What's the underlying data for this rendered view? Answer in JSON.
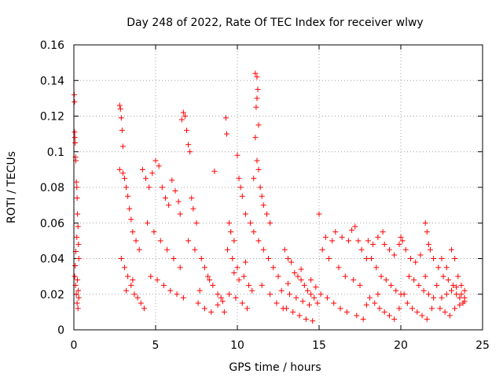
{
  "chart_data": {
    "type": "scatter",
    "title": "Day 248 of 2022, Rate Of TEC Index for receiver wlwy",
    "xlabel": "GPS time / hours",
    "ylabel": "ROTI / TECUs",
    "xlim": [
      0,
      25
    ],
    "ylim": [
      0,
      0.16
    ],
    "x_ticks": [
      0,
      5,
      10,
      15,
      20,
      25
    ],
    "x_tick_labels": [
      "0",
      "5",
      "10",
      "15",
      "20",
      "25"
    ],
    "y_ticks": [
      0,
      0.02,
      0.04,
      0.06,
      0.08,
      0.1,
      0.12,
      0.14,
      0.16
    ],
    "y_tick_labels": [
      "0",
      "0.02",
      "0.04",
      "0.06",
      "0.08",
      "0.1",
      "0.12",
      "0.14",
      "0.16"
    ],
    "grid": true,
    "marker": "+",
    "color": "#ff0000",
    "series": [
      {
        "points": [
          [
            0.02,
            0.132
          ],
          [
            0.04,
            0.128
          ],
          [
            0.05,
            0.111
          ],
          [
            0.06,
            0.108
          ],
          [
            0.08,
            0.105
          ],
          [
            0.1,
            0.097
          ],
          [
            0.12,
            0.095
          ],
          [
            0.15,
            0.083
          ],
          [
            0.18,
            0.08
          ],
          [
            0.2,
            0.074
          ],
          [
            0.22,
            0.065
          ],
          [
            0.25,
            0.058
          ],
          [
            0.28,
            0.048
          ],
          [
            0.3,
            0.04
          ],
          [
            0.05,
            0.03
          ],
          [
            0.1,
            0.025
          ],
          [
            0.15,
            0.02
          ],
          [
            0.2,
            0.015
          ],
          [
            0.25,
            0.012
          ],
          [
            0.3,
            0.018
          ],
          [
            0.08,
            0.036
          ],
          [
            0.12,
            0.044
          ],
          [
            0.18,
            0.052
          ],
          [
            0.22,
            0.028
          ],
          [
            0.27,
            0.022
          ],
          [
            2.8,
            0.126
          ],
          [
            2.85,
            0.124
          ],
          [
            2.9,
            0.119
          ],
          [
            2.95,
            0.112
          ],
          [
            3.0,
            0.103
          ],
          [
            2.8,
            0.09
          ],
          [
            3.0,
            0.088
          ],
          [
            3.1,
            0.085
          ],
          [
            3.2,
            0.08
          ],
          [
            3.3,
            0.075
          ],
          [
            3.4,
            0.068
          ],
          [
            3.5,
            0.062
          ],
          [
            3.6,
            0.055
          ],
          [
            3.8,
            0.05
          ],
          [
            4.0,
            0.045
          ],
          [
            2.9,
            0.04
          ],
          [
            3.1,
            0.035
          ],
          [
            3.3,
            0.03
          ],
          [
            3.5,
            0.025
          ],
          [
            3.7,
            0.02
          ],
          [
            3.9,
            0.018
          ],
          [
            4.1,
            0.015
          ],
          [
            4.3,
            0.012
          ],
          [
            3.2,
            0.022
          ],
          [
            3.6,
            0.028
          ],
          [
            4.2,
            0.09
          ],
          [
            4.4,
            0.085
          ],
          [
            4.6,
            0.08
          ],
          [
            4.8,
            0.088
          ],
          [
            5.0,
            0.095
          ],
          [
            5.2,
            0.092
          ],
          [
            5.4,
            0.08
          ],
          [
            5.6,
            0.074
          ],
          [
            5.8,
            0.07
          ],
          [
            6.0,
            0.084
          ],
          [
            6.2,
            0.078
          ],
          [
            6.4,
            0.072
          ],
          [
            6.5,
            0.065
          ],
          [
            4.5,
            0.06
          ],
          [
            4.9,
            0.055
          ],
          [
            5.3,
            0.05
          ],
          [
            5.7,
            0.045
          ],
          [
            6.1,
            0.04
          ],
          [
            6.5,
            0.035
          ],
          [
            4.7,
            0.03
          ],
          [
            5.1,
            0.028
          ],
          [
            5.5,
            0.025
          ],
          [
            5.9,
            0.022
          ],
          [
            6.3,
            0.02
          ],
          [
            6.7,
            0.018
          ],
          [
            6.6,
            0.118
          ],
          [
            6.7,
            0.122
          ],
          [
            6.8,
            0.12
          ],
          [
            6.9,
            0.112
          ],
          [
            7.0,
            0.104
          ],
          [
            7.1,
            0.1
          ],
          [
            7.2,
            0.074
          ],
          [
            7.3,
            0.068
          ],
          [
            7.5,
            0.06
          ],
          [
            7.0,
            0.05
          ],
          [
            7.4,
            0.045
          ],
          [
            7.8,
            0.04
          ],
          [
            8.0,
            0.035
          ],
          [
            8.2,
            0.03
          ],
          [
            8.5,
            0.025
          ],
          [
            8.6,
            0.089
          ],
          [
            8.8,
            0.02
          ],
          [
            9.0,
            0.018
          ],
          [
            7.6,
            0.015
          ],
          [
            8.0,
            0.012
          ],
          [
            8.4,
            0.01
          ],
          [
            8.8,
            0.014
          ],
          [
            9.1,
            0.016
          ],
          [
            7.7,
            0.022
          ],
          [
            8.3,
            0.028
          ],
          [
            9.3,
            0.119
          ],
          [
            9.35,
            0.11
          ],
          [
            9.5,
            0.06
          ],
          [
            9.6,
            0.055
          ],
          [
            9.8,
            0.05
          ],
          [
            10.0,
            0.098
          ],
          [
            10.1,
            0.085
          ],
          [
            10.2,
            0.08
          ],
          [
            10.3,
            0.075
          ],
          [
            10.5,
            0.065
          ],
          [
            10.8,
            0.06
          ],
          [
            9.4,
            0.045
          ],
          [
            9.7,
            0.04
          ],
          [
            10.0,
            0.035
          ],
          [
            10.4,
            0.03
          ],
          [
            10.7,
            0.025
          ],
          [
            9.5,
            0.02
          ],
          [
            9.9,
            0.018
          ],
          [
            10.3,
            0.015
          ],
          [
            10.6,
            0.012
          ],
          [
            9.2,
            0.01
          ],
          [
            10.9,
            0.022
          ],
          [
            10.1,
            0.028
          ],
          [
            9.8,
            0.032
          ],
          [
            10.5,
            0.038
          ],
          [
            11.1,
            0.144
          ],
          [
            11.2,
            0.142
          ],
          [
            11.25,
            0.135
          ],
          [
            11.2,
            0.13
          ],
          [
            11.15,
            0.125
          ],
          [
            11.3,
            0.115
          ],
          [
            11.1,
            0.108
          ],
          [
            11.2,
            0.095
          ],
          [
            11.3,
            0.09
          ],
          [
            11.0,
            0.085
          ],
          [
            11.4,
            0.08
          ],
          [
            11.5,
            0.075
          ],
          [
            11.6,
            0.07
          ],
          [
            11.8,
            0.065
          ],
          [
            12.0,
            0.06
          ],
          [
            11.0,
            0.055
          ],
          [
            11.3,
            0.05
          ],
          [
            11.6,
            0.045
          ],
          [
            11.9,
            0.04
          ],
          [
            12.2,
            0.035
          ],
          [
            12.5,
            0.03
          ],
          [
            11.5,
            0.025
          ],
          [
            12.0,
            0.02
          ],
          [
            12.4,
            0.015
          ],
          [
            12.8,
            0.012
          ],
          [
            12.9,
            0.045
          ],
          [
            13.1,
            0.04
          ],
          [
            13.3,
            0.038
          ],
          [
            13.5,
            0.032
          ],
          [
            13.7,
            0.03
          ],
          [
            13.9,
            0.028
          ],
          [
            14.1,
            0.025
          ],
          [
            14.3,
            0.022
          ],
          [
            14.5,
            0.02
          ],
          [
            14.7,
            0.018
          ],
          [
            14.9,
            0.015
          ],
          [
            13.0,
            0.012
          ],
          [
            13.4,
            0.01
          ],
          [
            13.8,
            0.008
          ],
          [
            14.2,
            0.006
          ],
          [
            14.6,
            0.005
          ],
          [
            13.2,
            0.02
          ],
          [
            13.6,
            0.018
          ],
          [
            14.0,
            0.016
          ],
          [
            14.4,
            0.014
          ],
          [
            14.8,
            0.024
          ],
          [
            13.1,
            0.026
          ],
          [
            13.9,
            0.034
          ],
          [
            14.5,
            0.028
          ],
          [
            12.7,
            0.022
          ],
          [
            15.0,
            0.065
          ],
          [
            15.4,
            0.052
          ],
          [
            15.8,
            0.05
          ],
          [
            16.0,
            0.055
          ],
          [
            16.4,
            0.052
          ],
          [
            16.8,
            0.05
          ],
          [
            17.0,
            0.056
          ],
          [
            17.2,
            0.058
          ],
          [
            17.4,
            0.05
          ],
          [
            17.6,
            0.045
          ],
          [
            17.9,
            0.04
          ],
          [
            15.2,
            0.045
          ],
          [
            15.6,
            0.04
          ],
          [
            16.2,
            0.035
          ],
          [
            16.6,
            0.03
          ],
          [
            17.1,
            0.028
          ],
          [
            17.5,
            0.025
          ],
          [
            15.1,
            0.02
          ],
          [
            15.5,
            0.018
          ],
          [
            15.9,
            0.015
          ],
          [
            16.3,
            0.012
          ],
          [
            16.7,
            0.01
          ],
          [
            17.3,
            0.008
          ],
          [
            17.7,
            0.006
          ],
          [
            17.9,
            0.014
          ],
          [
            18.0,
            0.05
          ],
          [
            18.3,
            0.048
          ],
          [
            18.6,
            0.052
          ],
          [
            18.9,
            0.055
          ],
          [
            19.0,
            0.048
          ],
          [
            19.3,
            0.045
          ],
          [
            19.6,
            0.042
          ],
          [
            19.9,
            0.048
          ],
          [
            20.0,
            0.052
          ],
          [
            20.1,
            0.05
          ],
          [
            18.2,
            0.04
          ],
          [
            18.5,
            0.035
          ],
          [
            18.8,
            0.03
          ],
          [
            19.1,
            0.028
          ],
          [
            19.4,
            0.025
          ],
          [
            19.7,
            0.022
          ],
          [
            20.0,
            0.02
          ],
          [
            18.1,
            0.018
          ],
          [
            18.4,
            0.015
          ],
          [
            18.7,
            0.012
          ],
          [
            19.0,
            0.01
          ],
          [
            19.3,
            0.008
          ],
          [
            19.6,
            0.006
          ],
          [
            19.9,
            0.012
          ],
          [
            18.6,
            0.02
          ],
          [
            20.3,
            0.045
          ],
          [
            20.6,
            0.04
          ],
          [
            20.9,
            0.038
          ],
          [
            21.2,
            0.042
          ],
          [
            21.5,
            0.06
          ],
          [
            21.6,
            0.055
          ],
          [
            21.7,
            0.048
          ],
          [
            21.8,
            0.045
          ],
          [
            22.0,
            0.04
          ],
          [
            22.3,
            0.035
          ],
          [
            20.5,
            0.03
          ],
          [
            20.8,
            0.028
          ],
          [
            21.1,
            0.025
          ],
          [
            21.4,
            0.022
          ],
          [
            21.7,
            0.02
          ],
          [
            22.0,
            0.018
          ],
          [
            20.4,
            0.015
          ],
          [
            20.7,
            0.012
          ],
          [
            21.0,
            0.01
          ],
          [
            21.3,
            0.008
          ],
          [
            21.6,
            0.006
          ],
          [
            21.9,
            0.012
          ],
          [
            20.2,
            0.02
          ],
          [
            21.5,
            0.03
          ],
          [
            22.2,
            0.025
          ],
          [
            22.5,
            0.04
          ],
          [
            22.8,
            0.035
          ],
          [
            23.1,
            0.045
          ],
          [
            23.3,
            0.04
          ],
          [
            23.5,
            0.03
          ],
          [
            23.7,
            0.025
          ],
          [
            23.9,
            0.022
          ],
          [
            22.6,
            0.03
          ],
          [
            22.9,
            0.028
          ],
          [
            23.2,
            0.025
          ],
          [
            23.4,
            0.02
          ],
          [
            23.6,
            0.018
          ],
          [
            23.8,
            0.015
          ],
          [
            22.4,
            0.012
          ],
          [
            22.7,
            0.01
          ],
          [
            23.0,
            0.008
          ],
          [
            23.3,
            0.012
          ],
          [
            23.6,
            0.014
          ],
          [
            23.9,
            0.016
          ],
          [
            22.5,
            0.018
          ],
          [
            22.8,
            0.02
          ],
          [
            23.1,
            0.022
          ],
          [
            23.4,
            0.024
          ],
          [
            23.7,
            0.02
          ],
          [
            23.9,
            0.018
          ]
        ]
      }
    ]
  }
}
